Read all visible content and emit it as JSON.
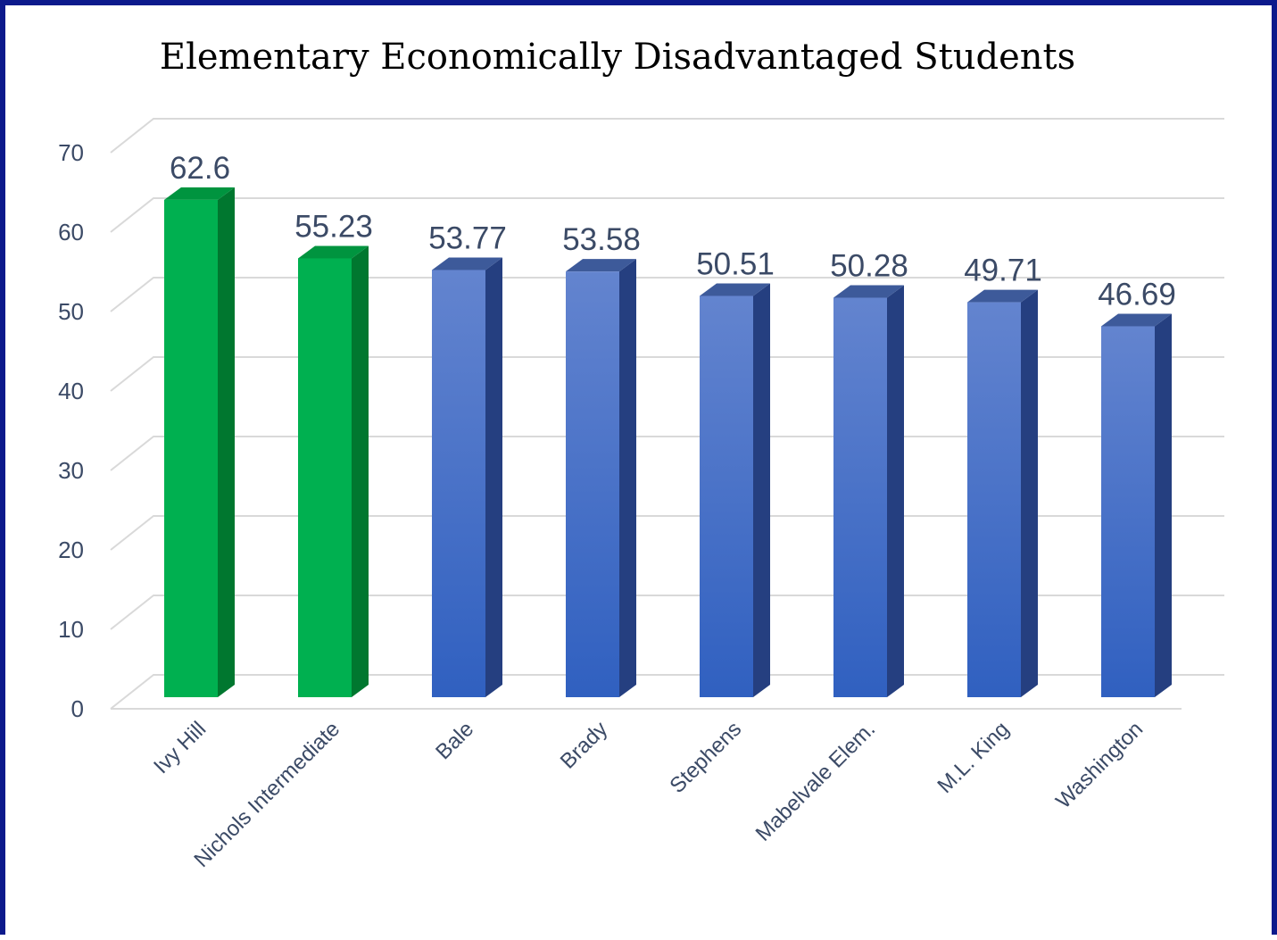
{
  "chart_data": {
    "type": "bar",
    "title": "Elementary Economically Disadvantaged Students",
    "xlabel": "",
    "ylabel": "",
    "categories": [
      "Ivy Hill",
      "Nichols Intermediate",
      "Bale",
      "Brady",
      "Stephens",
      "Mabelvale Elem.",
      "M.L. King",
      "Washington"
    ],
    "values": [
      62.6,
      55.23,
      53.77,
      53.58,
      50.51,
      50.28,
      49.71,
      46.69
    ],
    "value_labels": [
      "62.6",
      "55.23",
      "53.77",
      "53.58",
      "50.51",
      "50.28",
      "49.71",
      "46.69"
    ],
    "yticks": [
      "0",
      "10",
      "20",
      "30",
      "40",
      "50",
      "60",
      "70"
    ],
    "ylim": [
      0,
      70
    ],
    "grid": true,
    "style_3d": true,
    "highlight_count": 2,
    "colors": {
      "highlight_front": "#00b050",
      "highlight_side": "#00772f",
      "highlight_top": "#00943f",
      "normal_front_top": "#6384cf",
      "normal_front_bottom": "#3060c0",
      "normal_side": "#253f80",
      "normal_top": "#3d5a9a",
      "frame": "#0d1a8c",
      "grid": "#d9d9d9",
      "text": "#3b4a66"
    }
  }
}
